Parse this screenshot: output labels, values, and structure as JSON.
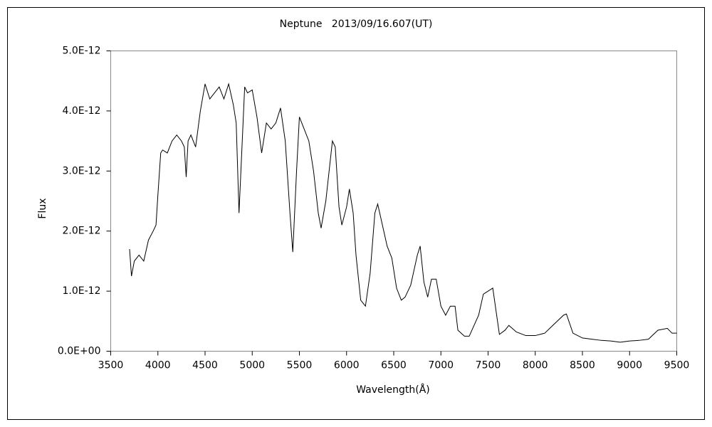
{
  "chart_data": {
    "type": "line",
    "title": "Neptune   2013/09/16.607(UT)",
    "x_label": "Wavelength(Å)",
    "y_label": "Flux",
    "xlim": [
      3500,
      9500
    ],
    "xticks": [
      3500,
      4000,
      4500,
      5000,
      5500,
      6000,
      6500,
      7000,
      7500,
      8000,
      8500,
      9000,
      9500
    ],
    "ylim": [
      0,
      5e-12
    ],
    "yticks": [
      {
        "value": 0,
        "label": "0.0E+00"
      },
      {
        "value": 1e-12,
        "label": "1.0E-12"
      },
      {
        "value": 2e-12,
        "label": "2.0E-12"
      },
      {
        "value": 3e-12,
        "label": "3.0E-12"
      },
      {
        "value": 4e-12,
        "label": "4.0E-12"
      },
      {
        "value": 5e-12,
        "label": "5.0E-12"
      }
    ],
    "grid": false,
    "series": [
      {
        "color": "#000000",
        "x": [
          3700,
          3720,
          3750,
          3800,
          3850,
          3900,
          3950,
          3980,
          4000,
          4030,
          4050,
          4100,
          4150,
          4200,
          4250,
          4280,
          4300,
          4320,
          4350,
          4400,
          4450,
          4500,
          4550,
          4600,
          4650,
          4700,
          4750,
          4800,
          4830,
          4860,
          4880,
          4920,
          4950,
          5000,
          5050,
          5100,
          5150,
          5200,
          5250,
          5300,
          5350,
          5400,
          5430,
          5470,
          5500,
          5550,
          5600,
          5650,
          5700,
          5730,
          5780,
          5850,
          5880,
          5920,
          5950,
          6000,
          6030,
          6070,
          6100,
          6150,
          6200,
          6250,
          6300,
          6330,
          6380,
          6430,
          6480,
          6530,
          6580,
          6620,
          6680,
          6750,
          6780,
          6820,
          6860,
          6900,
          6950,
          7000,
          7050,
          7100,
          7150,
          7180,
          7250,
          7300,
          7400,
          7450,
          7500,
          7550,
          7600,
          7620,
          7680,
          7720,
          7800,
          7900,
          8000,
          8100,
          8200,
          8300,
          8330,
          8400,
          8500,
          8600,
          8700,
          8800,
          8900,
          9000,
          9100,
          9200,
          9300,
          9400,
          9450,
          9500
        ],
        "values": [
          1.7e-12,
          1.25e-12,
          1.5e-12,
          1.6e-12,
          1.5e-12,
          1.85e-12,
          2e-12,
          2.1e-12,
          2.6e-12,
          3.3e-12,
          3.35e-12,
          3.3e-12,
          3.5e-12,
          3.6e-12,
          3.5e-12,
          3.4e-12,
          2.9e-12,
          3.5e-12,
          3.6e-12,
          3.4e-12,
          4e-12,
          4.45e-12,
          4.2e-12,
          4.3e-12,
          4.4e-12,
          4.2e-12,
          4.45e-12,
          4.1e-12,
          3.8e-12,
          2.3e-12,
          3e-12,
          4.4e-12,
          4.3e-12,
          4.35e-12,
          3.9e-12,
          3.3e-12,
          3.8e-12,
          3.7e-12,
          3.8e-12,
          4.05e-12,
          3.5e-12,
          2.3e-12,
          1.65e-12,
          3e-12,
          3.9e-12,
          3.7e-12,
          3.5e-12,
          3e-12,
          2.3e-12,
          2.05e-12,
          2.5e-12,
          3.5e-12,
          3.4e-12,
          2.4e-12,
          2.1e-12,
          2.4e-12,
          2.7e-12,
          2.3e-12,
          1.6e-12,
          8.5e-13,
          7.5e-13,
          1.3e-12,
          2.3e-12,
          2.45e-12,
          2.1e-12,
          1.75e-12,
          1.55e-12,
          1.05e-12,
          8.5e-13,
          9e-13,
          1.1e-12,
          1.6e-12,
          1.75e-12,
          1.15e-12,
          9e-13,
          1.2e-12,
          1.2e-12,
          7.5e-13,
          6e-13,
          7.5e-13,
          7.5e-13,
          3.5e-13,
          2.5e-13,
          2.5e-13,
          6e-13,
          9.5e-13,
          1e-12,
          1.05e-12,
          5e-13,
          2.8e-13,
          3.5e-13,
          4.3e-13,
          3.2e-13,
          2.6e-13,
          2.6e-13,
          3e-13,
          4.5e-13,
          6e-13,
          6.2e-13,
          3e-13,
          2.2e-13,
          2e-13,
          1.8e-13,
          1.7e-13,
          1.5e-13,
          1.7e-13,
          1.8e-13,
          2e-13,
          3.5e-13,
          3.8e-13,
          3e-13,
          3e-13
        ]
      }
    ]
  }
}
